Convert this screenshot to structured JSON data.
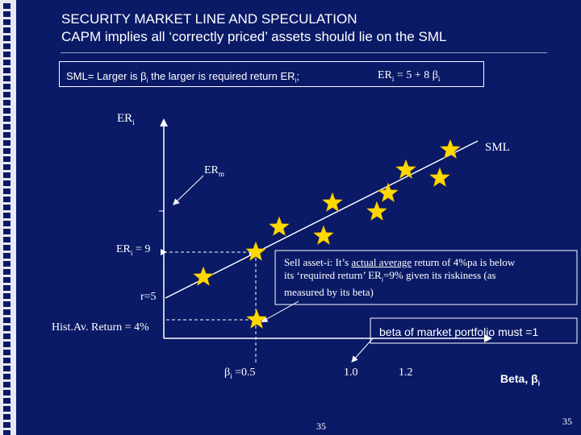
{
  "title_line1": "SECURITY MARKET LINE AND SPECULATION",
  "title_line2": "CAPM implies all ‘correctly priced’ assets should lie on the SML",
  "sml_box": {
    "def_prefix": "SML= Larger is β",
    "def_sub": "i",
    "def_suffix": " the larger is required return ER",
    "def_sub2": "i",
    "def_end": ";",
    "eq_prefix": "ER",
    "eq_sub": "i",
    "eq_mid": " = 5  + 8 β",
    "eq_sub2": "i"
  },
  "y_axis": {
    "label": "ER",
    "label_sub": "i"
  },
  "labels": {
    "sml": "SML",
    "erm": "ER",
    "erm_sub": "m",
    "eri9_prefix": "ER",
    "eri9_sub": "i",
    "eri9_suffix": " = 9",
    "rf": "r=5",
    "hist": "Hist.Av. Return = 4%",
    "beta_i_prefix": "β",
    "beta_i_sub": "i",
    "beta_i_suffix": " =0.5",
    "beta_10": "1.0",
    "beta_12": "1.2",
    "x_axis_prefix": "Beta, β",
    "x_axis_sub": "i"
  },
  "callout": {
    "line1_pre": "Sell asset-i: It’s ",
    "line1_u": "actual average",
    "line1_post": " return of 4%pa is below",
    "line2_pre": "its ‘required return’ ER",
    "line2_sub": "i",
    "line2_post": "=9% given its riskiness (as",
    "line3": "measured by its  beta)"
  },
  "market_note": "beta of market portfolio must =1",
  "page_number_center": "35",
  "page_number_right": "35",
  "colors": {
    "background": "#0a1a66",
    "star": "#ffd800",
    "text": "#ffffff",
    "strip": "#dfe3f0"
  }
}
